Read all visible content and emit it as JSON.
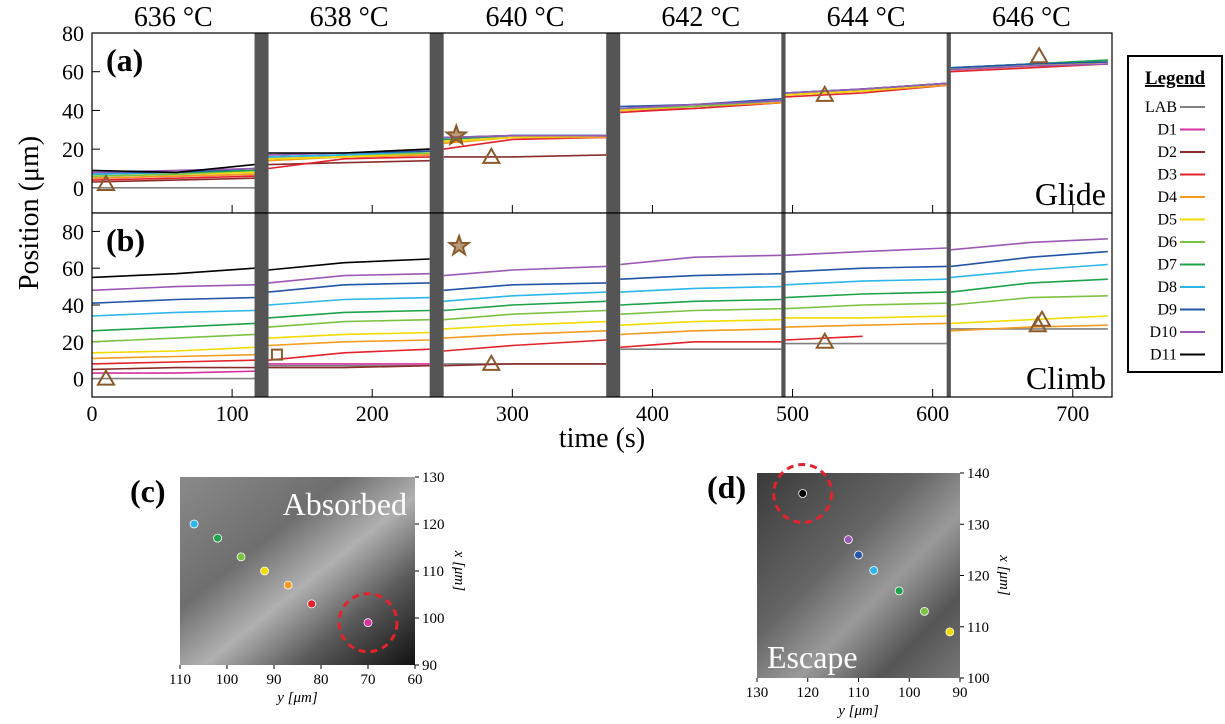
{
  "chart_data": [
    {
      "type": "line",
      "title": "(a)",
      "annotation": "Glide",
      "ylabel": "Position (μm)",
      "temperatures": [
        "636 °C",
        "638 °C",
        "640 °C",
        "642 °C",
        "644 °C",
        "646 °C"
      ],
      "dividers": [
        [
          116,
          126
        ],
        [
          241,
          251
        ],
        [
          367,
          377
        ],
        [
          492,
          495
        ],
        [
          610,
          613
        ]
      ],
      "legend_title": "Legend",
      "x": [
        0,
        60,
        116,
        121,
        126,
        180,
        241,
        246,
        251,
        300,
        367,
        372,
        377,
        430,
        492,
        493.5,
        495,
        550,
        610,
        611.5,
        613,
        670,
        725
      ],
      "ylim": [
        -13,
        80
      ],
      "yticks": [
        0,
        20,
        40,
        60,
        80
      ],
      "series": [
        {
          "name": "LAB",
          "color": "#808080",
          "values": [
            0,
            0,
            0,
            null,
            null,
            null,
            null,
            null,
            null,
            null,
            null,
            null,
            null,
            null,
            null,
            null,
            null,
            null,
            null,
            null,
            null,
            null,
            null
          ]
        },
        {
          "name": "D1",
          "color": "#d6319e",
          "values": [
            5,
            6,
            7,
            null,
            15,
            16,
            17,
            null,
            24,
            26,
            26,
            null,
            40,
            41,
            44,
            null,
            48,
            50,
            53,
            null,
            61,
            63,
            64
          ]
        },
        {
          "name": "D2",
          "color": "#8b2c2c",
          "values": [
            3,
            4,
            5,
            null,
            12,
            13,
            14,
            null,
            16,
            16,
            17,
            null,
            null,
            null,
            null,
            null,
            null,
            null,
            null,
            null,
            null,
            null,
            null
          ]
        },
        {
          "name": "D3",
          "color": "#e3222b",
          "values": [
            4,
            5,
            6,
            null,
            10,
            15,
            16,
            null,
            20,
            25,
            26,
            null,
            39,
            41,
            44,
            null,
            47,
            49,
            53,
            null,
            60,
            62,
            64
          ]
        },
        {
          "name": "D4",
          "color": "#f39c1f",
          "values": [
            5,
            6,
            7,
            null,
            14,
            16,
            17,
            null,
            23,
            26,
            26,
            null,
            40,
            42,
            44,
            null,
            48,
            50,
            53,
            null,
            61,
            63,
            65
          ]
        },
        {
          "name": "D5",
          "color": "#f2dc00",
          "values": [
            6,
            7,
            8,
            null,
            15,
            16,
            18,
            null,
            24,
            26,
            27,
            null,
            40,
            42,
            45,
            null,
            48,
            50,
            54,
            null,
            61,
            63,
            65
          ]
        },
        {
          "name": "D6",
          "color": "#7cc242",
          "values": [
            6,
            7,
            9,
            null,
            16,
            17,
            18,
            null,
            25,
            27,
            27,
            null,
            41,
            42,
            45,
            null,
            49,
            51,
            54,
            null,
            62,
            64,
            66
          ]
        },
        {
          "name": "D7",
          "color": "#1fa34a",
          "values": [
            7,
            8,
            9,
            null,
            16,
            17,
            19,
            null,
            25,
            27,
            27,
            null,
            41,
            43,
            45,
            null,
            49,
            51,
            54,
            null,
            62,
            64,
            66
          ]
        },
        {
          "name": "D8",
          "color": "#2bb7ea",
          "values": [
            7,
            8,
            10,
            null,
            16,
            17,
            19,
            null,
            26,
            27,
            27,
            null,
            41,
            43,
            45,
            null,
            49,
            51,
            54,
            null,
            62,
            64,
            65
          ]
        },
        {
          "name": "D9",
          "color": "#2454a6",
          "values": [
            8,
            8,
            10,
            null,
            17,
            18,
            19,
            null,
            26,
            27,
            27,
            null,
            42,
            43,
            46,
            null,
            49,
            51,
            54,
            null,
            62,
            64,
            65
          ]
        },
        {
          "name": "D10",
          "color": "#9b59b6",
          "values": [
            8,
            9,
            10,
            null,
            17,
            18,
            20,
            null,
            26,
            27,
            27,
            null,
            41,
            43,
            45,
            null,
            49,
            51,
            54,
            null,
            61,
            63,
            64
          ]
        },
        {
          "name": "D11",
          "color": "#000000",
          "values": [
            9,
            8,
            12,
            null,
            18,
            18,
            20,
            null,
            27,
            null,
            null,
            null,
            null,
            null,
            null,
            null,
            null,
            null,
            null,
            null,
            null,
            null,
            null
          ]
        }
      ],
      "marker_color": "#8b5a2b",
      "markers": [
        {
          "shape": "triangle",
          "x": 10,
          "y": 2
        },
        {
          "shape": "star",
          "x": 260,
          "y": 27
        },
        {
          "shape": "triangle",
          "x": 285,
          "y": 16
        },
        {
          "shape": "triangle",
          "x": 523,
          "y": 48
        },
        {
          "shape": "triangle",
          "x": 676,
          "y": 68
        }
      ]
    },
    {
      "type": "line",
      "title": "(b)",
      "annotation": "Climb",
      "xlabel": "time (s)",
      "xlim": [
        0,
        728
      ],
      "xticks": [
        0,
        100,
        200,
        300,
        400,
        500,
        600,
        700
      ],
      "ylim": [
        -10,
        90
      ],
      "yticks": [
        0,
        20,
        40,
        60,
        80
      ],
      "series": [
        {
          "values": [
            0,
            0,
            0,
            null,
            7,
            7,
            7,
            null,
            8,
            8,
            8,
            null,
            16,
            16,
            16,
            null,
            19,
            19,
            19,
            null,
            27,
            27,
            27
          ]
        },
        {
          "values": [
            3,
            3,
            4,
            null,
            8,
            8,
            8,
            null,
            null,
            null,
            null,
            null,
            null,
            null,
            null,
            null,
            null,
            null,
            null,
            null,
            null,
            null,
            null
          ]
        },
        {
          "values": [
            5,
            6,
            6,
            null,
            6,
            6,
            7,
            null,
            7,
            8,
            8,
            null,
            null,
            null,
            null,
            null,
            null,
            null,
            null,
            null,
            null,
            null,
            null
          ]
        },
        {
          "values": [
            8,
            9,
            10,
            null,
            10,
            14,
            16,
            null,
            15,
            18,
            21,
            null,
            17,
            20,
            20,
            null,
            21,
            23,
            null,
            null,
            null,
            null,
            null
          ]
        },
        {
          "values": [
            11,
            12,
            13,
            null,
            18,
            20,
            21,
            null,
            22,
            24,
            26,
            null,
            24,
            26,
            27,
            null,
            28,
            29,
            30,
            null,
            26,
            28,
            29
          ]
        },
        {
          "values": [
            14,
            15,
            17,
            null,
            22,
            24,
            25,
            null,
            27,
            29,
            31,
            null,
            29,
            31,
            32,
            null,
            33,
            33,
            34,
            null,
            30,
            32,
            34
          ]
        },
        {
          "values": [
            20,
            22,
            24,
            null,
            28,
            31,
            32,
            null,
            32,
            35,
            37,
            null,
            35,
            37,
            38,
            null,
            38,
            40,
            41,
            null,
            40,
            44,
            45
          ]
        },
        {
          "values": [
            26,
            28,
            30,
            null,
            33,
            36,
            37,
            null,
            37,
            40,
            42,
            null,
            40,
            42,
            43,
            null,
            44,
            46,
            47,
            null,
            47,
            52,
            54
          ]
        },
        {
          "values": [
            34,
            36,
            37,
            null,
            40,
            43,
            44,
            null,
            42,
            45,
            47,
            null,
            47,
            49,
            50,
            null,
            51,
            53,
            54,
            null,
            55,
            59,
            62
          ]
        },
        {
          "values": [
            41,
            43,
            44,
            null,
            47,
            51,
            52,
            null,
            48,
            51,
            52,
            null,
            54,
            56,
            57,
            null,
            58,
            60,
            61,
            null,
            61,
            66,
            69
          ]
        },
        {
          "values": [
            48,
            50,
            51,
            null,
            52,
            56,
            57,
            null,
            56,
            59,
            61,
            null,
            62,
            66,
            67,
            null,
            67,
            69,
            71,
            null,
            70,
            74,
            76
          ]
        },
        {
          "values": [
            55,
            57,
            60,
            null,
            59,
            63,
            65,
            null,
            null,
            null,
            null,
            null,
            null,
            null,
            null,
            null,
            null,
            null,
            null,
            null,
            null,
            null,
            null
          ]
        }
      ],
      "markers": [
        {
          "shape": "triangle",
          "x": 10,
          "y": 0
        },
        {
          "shape": "square",
          "x": 132,
          "y": 13
        },
        {
          "shape": "star",
          "x": 262,
          "y": 72
        },
        {
          "shape": "triangle",
          "x": 285,
          "y": 8
        },
        {
          "shape": "triangle",
          "x": 523,
          "y": 20
        },
        {
          "shape": "triangle",
          "x": 675,
          "y": 29
        },
        {
          "shape": "triangle",
          "x": 678,
          "y": 32
        }
      ]
    },
    {
      "type": "scatter",
      "title": "(c)",
      "annotation": "Absorbed",
      "xlabel": "y [μm]",
      "ylabel": "x [μm]",
      "xlim": [
        110,
        60
      ],
      "xticks": [
        110,
        100,
        90,
        80,
        70,
        60
      ],
      "ylim": [
        90,
        130
      ],
      "yticks": [
        90,
        100,
        110,
        120,
        130
      ],
      "points": [
        {
          "x": 107,
          "y": 120,
          "color": "#2bb7ea"
        },
        {
          "x": 102,
          "y": 117,
          "color": "#1fa34a"
        },
        {
          "x": 97,
          "y": 113,
          "color": "#7cc242"
        },
        {
          "x": 92,
          "y": 110,
          "color": "#f2dc00"
        },
        {
          "x": 87,
          "y": 107,
          "color": "#f39c1f"
        },
        {
          "x": 82,
          "y": 103,
          "color": "#e3222b"
        },
        {
          "x": 70,
          "y": 99,
          "color": "#d6319e"
        }
      ],
      "highlight": {
        "x": 70,
        "y": 99
      }
    },
    {
      "type": "scatter",
      "title": "(d)",
      "annotation": "Escape",
      "xlabel": "y [μm]",
      "ylabel": "x [μm]",
      "xlim": [
        130,
        90
      ],
      "xticks": [
        130,
        120,
        110,
        100,
        90
      ],
      "ylim": [
        100,
        140
      ],
      "yticks": [
        100,
        110,
        120,
        130,
        140
      ],
      "points": [
        {
          "x": 121,
          "y": 136,
          "color": "#000000"
        },
        {
          "x": 112,
          "y": 127,
          "color": "#9b59b6"
        },
        {
          "x": 110,
          "y": 124,
          "color": "#2454a6"
        },
        {
          "x": 107,
          "y": 121,
          "color": "#2bb7ea"
        },
        {
          "x": 102,
          "y": 117,
          "color": "#1fa34a"
        },
        {
          "x": 97,
          "y": 113,
          "color": "#7cc242"
        },
        {
          "x": 92,
          "y": 109,
          "color": "#f2dc00"
        }
      ],
      "highlight": {
        "x": 121,
        "y": 136
      }
    }
  ]
}
